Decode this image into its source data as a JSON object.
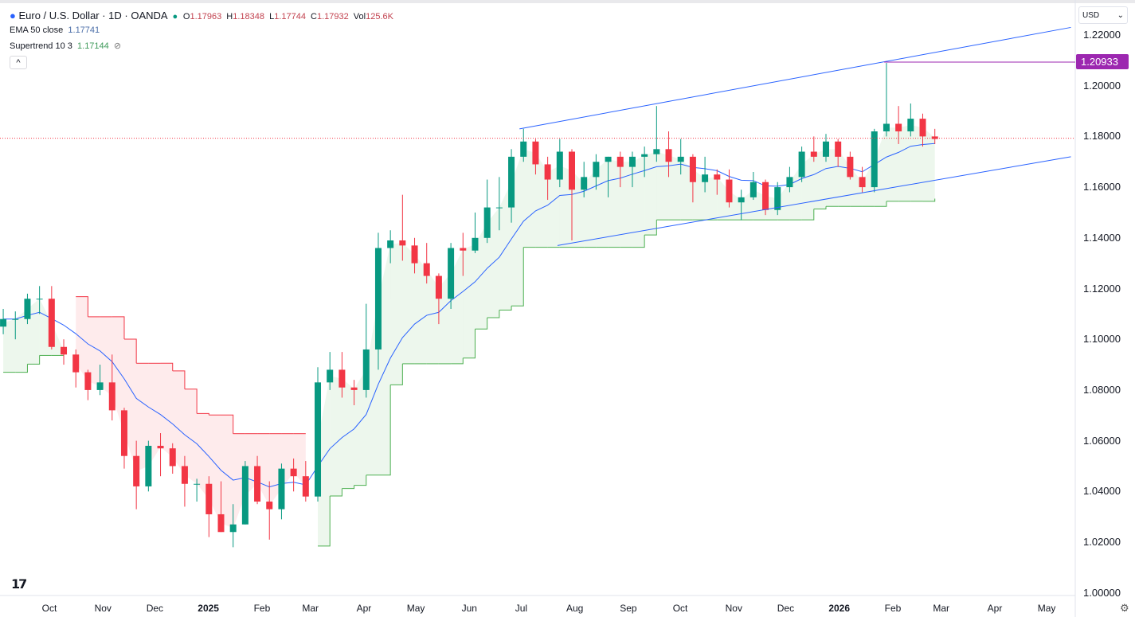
{
  "header": {
    "symbol": "Euro / U.S. Dollar · 1D · OANDA",
    "status_color": "#089981",
    "o_label": "O",
    "o": "1.17963",
    "h_label": "H",
    "h": "1.18348",
    "l_label": "L",
    "l": "1.17744",
    "c_label": "C",
    "c": "1.17932",
    "vol_label": "Vol",
    "vol": "125.6K"
  },
  "indicators": {
    "ema_label": "EMA 50 close",
    "ema_value": "1.17741",
    "st_label": "Supertrend 10 3",
    "st_value": "1.17144",
    "st_icon": "eye-off-icon",
    "collapse_icon": "chevron-up-icon"
  },
  "currency": {
    "label": "USD",
    "chevron": "⌄"
  },
  "price_label": "1.20933",
  "logo_text": "TV",
  "settings_icon": "⚙",
  "colors": {
    "up": "#089981",
    "down": "#f23645",
    "ema": "#2962ff",
    "st_up": "#4caf50",
    "st_down": "#f23645",
    "hline": "#9c27b0",
    "channel": "#2962ff"
  },
  "chart_data": {
    "type": "candlestick",
    "interval": "1D (approximated weekly)",
    "ylim": [
      1.0,
      1.225
    ],
    "yticks": [
      "1.22000",
      "1.20000",
      "1.18000",
      "1.16000",
      "1.14000",
      "1.12000",
      "1.10000",
      "1.08000",
      "1.06000",
      "1.04000",
      "1.02000",
      "1.00000"
    ],
    "xticks": [
      [
        "Oct",
        "2024-10-01"
      ],
      [
        "Nov",
        "2024-11-01"
      ],
      [
        "Dec",
        "2024-12-01"
      ],
      [
        "2025",
        "2025-01-01"
      ],
      [
        "Feb",
        "2025-02-01"
      ],
      [
        "Mar",
        "2025-03-01"
      ],
      [
        "Apr",
        "2025-04-01"
      ],
      [
        "May",
        "2025-05-01"
      ],
      [
        "Jun",
        "2025-06-01"
      ],
      [
        "Jul",
        "2025-07-01"
      ],
      [
        "Aug",
        "2025-08-01"
      ],
      [
        "Sep",
        "2025-09-01"
      ],
      [
        "Oct",
        "2025-10-01"
      ],
      [
        "Nov",
        "2025-11-01"
      ],
      [
        "Dec",
        "2025-12-01"
      ],
      [
        "2026",
        "2026-01-01"
      ],
      [
        "Feb",
        "2026-02-01"
      ],
      [
        "Mar",
        "2026-03-01"
      ],
      [
        "Apr",
        "2026-04-01"
      ],
      [
        "May",
        "2026-05-01"
      ]
    ],
    "last_price": 1.17932,
    "horizontal_line": {
      "price": 1.20933,
      "from": "2026-01-27"
    },
    "channel": {
      "upper": [
        [
          "2025-06-30",
          1.183
        ],
        [
          "2026-05-15",
          1.223
        ]
      ],
      "lower": [
        [
          "2025-07-22",
          1.137
        ],
        [
          "2026-05-15",
          1.172
        ]
      ]
    },
    "ohlc": [
      [
        "2024-09-02",
        1.105,
        1.112,
        1.102,
        1.108
      ],
      [
        "2024-09-09",
        1.108,
        1.111,
        1.1,
        1.108
      ],
      [
        "2024-09-16",
        1.108,
        1.118,
        1.106,
        1.116
      ],
      [
        "2024-09-23",
        1.116,
        1.121,
        1.11,
        1.116
      ],
      [
        "2024-09-30",
        1.116,
        1.121,
        1.096,
        1.097
      ],
      [
        "2024-10-07",
        1.097,
        1.1,
        1.09,
        1.094
      ],
      [
        "2024-10-14",
        1.094,
        1.096,
        1.081,
        1.087
      ],
      [
        "2024-10-21",
        1.087,
        1.088,
        1.076,
        1.08
      ],
      [
        "2024-10-28",
        1.08,
        1.09,
        1.078,
        1.083
      ],
      [
        "2024-11-04",
        1.083,
        1.094,
        1.068,
        1.072
      ],
      [
        "2024-11-11",
        1.072,
        1.073,
        1.049,
        1.054
      ],
      [
        "2024-11-18",
        1.054,
        1.06,
        1.033,
        1.042
      ],
      [
        "2024-11-25",
        1.042,
        1.06,
        1.04,
        1.058
      ],
      [
        "2024-12-02",
        1.058,
        1.063,
        1.046,
        1.057
      ],
      [
        "2024-12-09",
        1.057,
        1.059,
        1.047,
        1.05
      ],
      [
        "2024-12-16",
        1.05,
        1.054,
        1.034,
        1.043
      ],
      [
        "2024-12-23",
        1.043,
        1.045,
        1.036,
        1.043
      ],
      [
        "2024-12-30",
        1.043,
        1.046,
        1.022,
        1.031
      ],
      [
        "2025-01-06",
        1.031,
        1.044,
        1.024,
        1.024
      ],
      [
        "2025-01-13",
        1.024,
        1.035,
        1.018,
        1.027
      ],
      [
        "2025-01-20",
        1.027,
        1.052,
        1.027,
        1.05
      ],
      [
        "2025-01-27",
        1.05,
        1.054,
        1.035,
        1.036
      ],
      [
        "2025-02-03",
        1.036,
        1.044,
        1.021,
        1.033
      ],
      [
        "2025-02-10",
        1.033,
        1.051,
        1.029,
        1.049
      ],
      [
        "2025-02-17",
        1.049,
        1.053,
        1.04,
        1.046
      ],
      [
        "2025-02-24",
        1.046,
        1.052,
        1.036,
        1.038
      ],
      [
        "2025-03-03",
        1.038,
        1.089,
        1.036,
        1.083
      ],
      [
        "2025-03-10",
        1.083,
        1.095,
        1.08,
        1.088
      ],
      [
        "2025-03-17",
        1.088,
        1.095,
        1.077,
        1.081
      ],
      [
        "2025-03-24",
        1.081,
        1.084,
        1.074,
        1.08
      ],
      [
        "2025-03-31",
        1.08,
        1.114,
        1.077,
        1.096
      ],
      [
        "2025-04-07",
        1.096,
        1.142,
        1.088,
        1.136
      ],
      [
        "2025-04-14",
        1.136,
        1.143,
        1.13,
        1.139
      ],
      [
        "2025-04-21",
        1.139,
        1.157,
        1.131,
        1.137
      ],
      [
        "2025-04-28",
        1.137,
        1.14,
        1.126,
        1.13
      ],
      [
        "2025-05-05",
        1.13,
        1.138,
        1.122,
        1.125
      ],
      [
        "2025-05-12",
        1.125,
        1.126,
        1.106,
        1.116
      ],
      [
        "2025-05-19",
        1.116,
        1.138,
        1.112,
        1.136
      ],
      [
        "2025-05-26",
        1.136,
        1.142,
        1.125,
        1.135
      ],
      [
        "2025-06-02",
        1.135,
        1.15,
        1.134,
        1.14
      ],
      [
        "2025-06-09",
        1.14,
        1.163,
        1.138,
        1.152
      ],
      [
        "2025-06-16",
        1.152,
        1.164,
        1.143,
        1.152
      ],
      [
        "2025-06-23",
        1.152,
        1.175,
        1.146,
        1.172
      ],
      [
        "2025-06-30",
        1.172,
        1.183,
        1.17,
        1.178
      ],
      [
        "2025-07-07",
        1.178,
        1.179,
        1.165,
        1.169
      ],
      [
        "2025-07-14",
        1.169,
        1.172,
        1.155,
        1.163
      ],
      [
        "2025-07-21",
        1.163,
        1.179,
        1.16,
        1.174
      ],
      [
        "2025-07-28",
        1.174,
        1.175,
        1.139,
        1.159
      ],
      [
        "2025-08-04",
        1.159,
        1.17,
        1.156,
        1.164
      ],
      [
        "2025-08-11",
        1.164,
        1.173,
        1.159,
        1.17
      ],
      [
        "2025-08-18",
        1.17,
        1.172,
        1.156,
        1.172
      ],
      [
        "2025-08-25",
        1.172,
        1.174,
        1.16,
        1.168
      ],
      [
        "2025-09-01",
        1.168,
        1.174,
        1.16,
        1.172
      ],
      [
        "2025-09-08",
        1.172,
        1.176,
        1.164,
        1.173
      ],
      [
        "2025-09-15",
        1.173,
        1.192,
        1.17,
        1.175
      ],
      [
        "2025-09-22",
        1.175,
        1.182,
        1.164,
        1.17
      ],
      [
        "2025-09-29",
        1.17,
        1.179,
        1.165,
        1.172
      ],
      [
        "2025-10-06",
        1.172,
        1.173,
        1.154,
        1.162
      ],
      [
        "2025-10-13",
        1.162,
        1.172,
        1.158,
        1.165
      ],
      [
        "2025-10-20",
        1.165,
        1.167,
        1.157,
        1.163
      ],
      [
        "2025-10-27",
        1.163,
        1.167,
        1.152,
        1.154
      ],
      [
        "2025-11-03",
        1.154,
        1.159,
        1.147,
        1.156
      ],
      [
        "2025-11-10",
        1.156,
        1.166,
        1.155,
        1.162
      ],
      [
        "2025-11-17",
        1.162,
        1.163,
        1.149,
        1.151
      ],
      [
        "2025-11-24",
        1.151,
        1.162,
        1.149,
        1.16
      ],
      [
        "2025-12-01",
        1.16,
        1.168,
        1.158,
        1.164
      ],
      [
        "2025-12-08",
        1.164,
        1.176,
        1.162,
        1.174
      ],
      [
        "2025-12-15",
        1.174,
        1.18,
        1.17,
        1.172
      ],
      [
        "2025-12-22",
        1.172,
        1.181,
        1.17,
        1.178
      ],
      [
        "2025-12-29",
        1.178,
        1.179,
        1.168,
        1.172
      ],
      [
        "2026-01-05",
        1.172,
        1.174,
        1.163,
        1.164
      ],
      [
        "2026-01-12",
        1.164,
        1.168,
        1.158,
        1.16
      ],
      [
        "2026-01-19",
        1.16,
        1.183,
        1.158,
        1.182
      ],
      [
        "2026-01-26",
        1.182,
        1.209,
        1.18,
        1.185
      ],
      [
        "2026-02-02",
        1.185,
        1.192,
        1.177,
        1.182
      ],
      [
        "2026-02-09",
        1.182,
        1.193,
        1.18,
        1.187
      ],
      [
        "2026-02-16",
        1.187,
        1.189,
        1.176,
        1.18
      ],
      [
        "2026-02-23",
        1.18,
        1.183,
        1.177,
        1.179
      ]
    ]
  }
}
